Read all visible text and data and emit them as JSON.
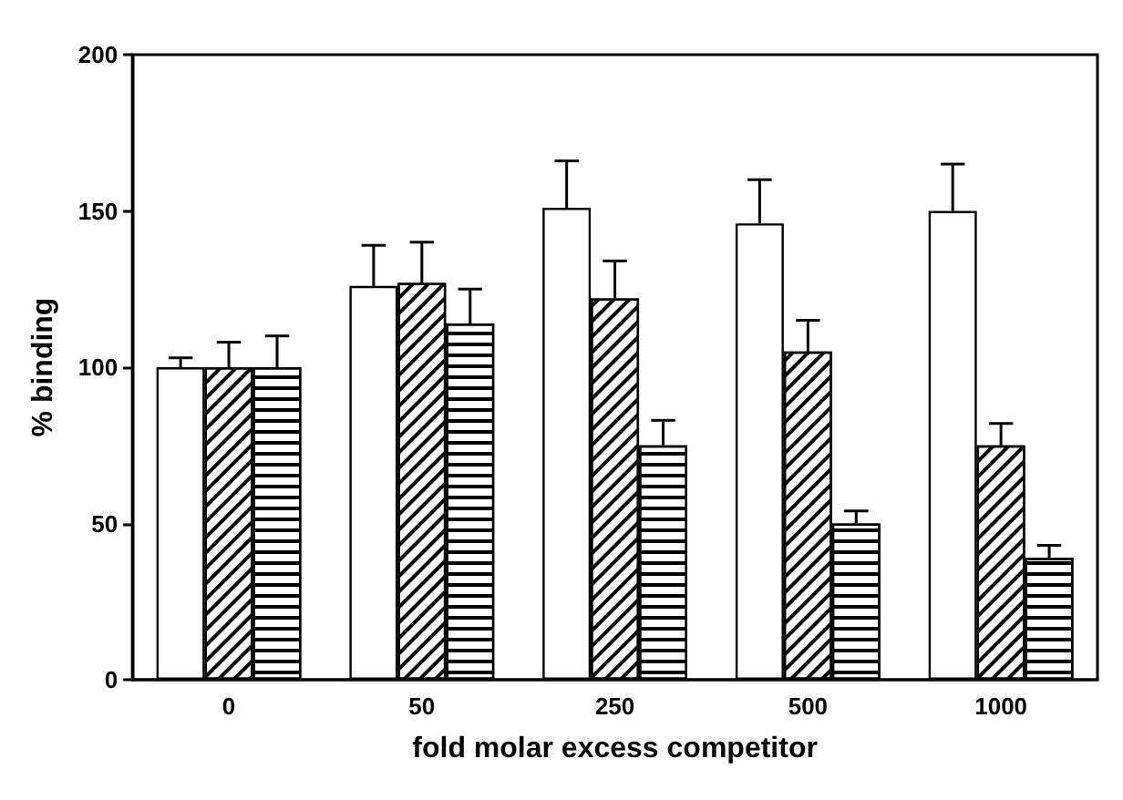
{
  "chart_data": {
    "type": "bar",
    "xlabel": "fold molar excess competitor",
    "ylabel": "% binding",
    "categories": [
      "0",
      "50",
      "250",
      "500",
      "1000"
    ],
    "series": [
      {
        "color": "#ffffff",
        "values": [
          100,
          126,
          151,
          146,
          150
        ],
        "errors": [
          [
            100,
            103
          ],
          [
            126,
            139
          ],
          [
            151,
            166
          ],
          [
            146,
            160
          ],
          [
            150,
            165
          ]
        ]
      },
      {
        "color": "#ffffff",
        "values": [
          100,
          127,
          122,
          105,
          75
        ],
        "errors": [
          [
            100,
            108
          ],
          [
            127,
            140
          ],
          [
            122,
            134
          ],
          [
            105,
            115
          ],
          [
            75,
            82
          ]
        ]
      },
      {
        "color": "#ffffff",
        "values": [
          100,
          114,
          75,
          50,
          39
        ],
        "errors": [
          [
            100,
            110
          ],
          [
            114,
            125
          ],
          [
            75,
            83
          ],
          [
            50,
            54
          ],
          [
            39,
            43
          ]
        ]
      }
    ],
    "ylim": [
      0,
      200
    ],
    "yticks": [
      0,
      50,
      100,
      150,
      200
    ],
    "grid": false
  }
}
